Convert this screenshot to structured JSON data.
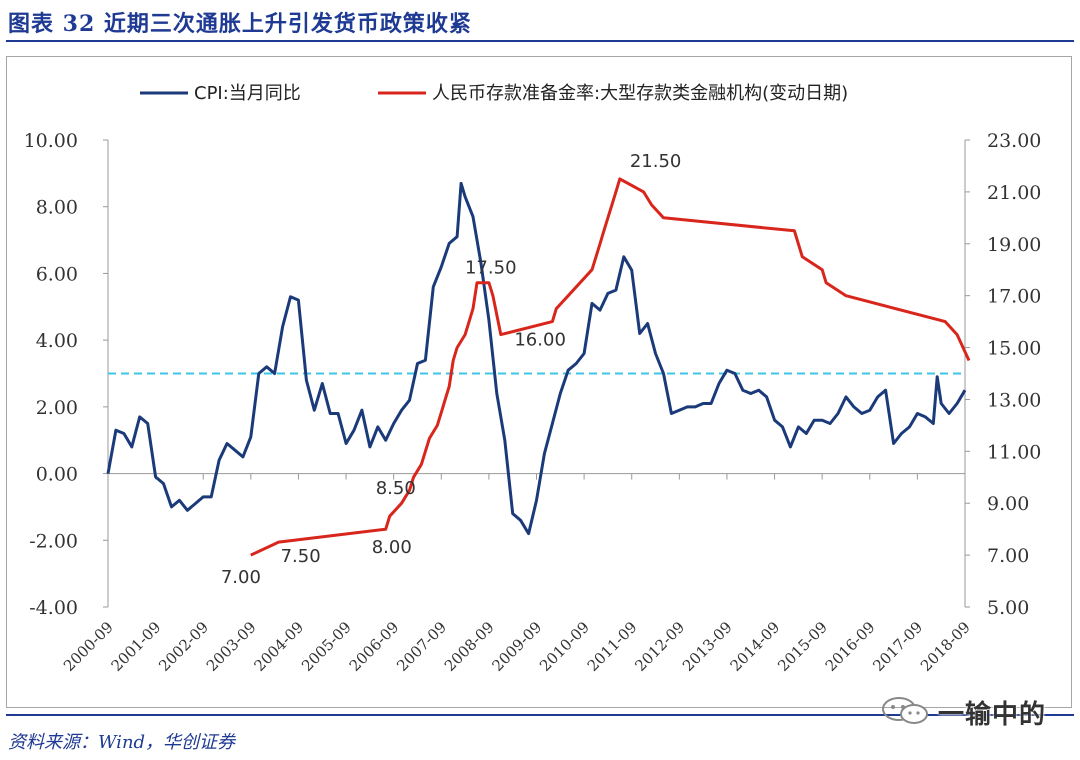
{
  "figure": {
    "title": "图表 32   近期三次通胀上升引发货币政策收紧",
    "source": "资料来源：Wind，华创证券",
    "watermark": "一输中的",
    "watermark_icon": "wechat-icon"
  },
  "colors": {
    "title": "#1f3a93",
    "cpi": "#1b3a7a",
    "rrr": "#d9261c",
    "reference": "#3ec6e6",
    "axis": "#999999"
  },
  "chart_data": {
    "type": "line",
    "x_range": [
      "2000-09",
      "2018-09"
    ],
    "xticks": [
      "2000-09",
      "2001-09",
      "2002-09",
      "2003-09",
      "2004-09",
      "2005-09",
      "2006-09",
      "2007-09",
      "2008-09",
      "2009-09",
      "2010-09",
      "2011-09",
      "2012-09",
      "2013-09",
      "2014-09",
      "2015-09",
      "2016-09",
      "2017-09",
      "2018-09"
    ],
    "y_left": {
      "min": -4,
      "max": 10,
      "ticks": [
        "-4.00",
        "-2.00",
        "0.00",
        "2.00",
        "4.00",
        "6.00",
        "8.00",
        "10.00"
      ]
    },
    "y_right": {
      "min": 5,
      "max": 23,
      "ticks": [
        "5.00",
        "7.00",
        "9.00",
        "11.00",
        "13.00",
        "15.00",
        "17.00",
        "19.00",
        "21.00",
        "23.00"
      ]
    },
    "legend_position": "top",
    "series": [
      {
        "name": "CPI:当月同比",
        "axis": "left",
        "x": [
          "2000-09",
          "2000-11",
          "2001-01",
          "2001-03",
          "2001-05",
          "2001-07",
          "2001-09",
          "2001-11",
          "2002-01",
          "2002-03",
          "2002-05",
          "2002-07",
          "2002-09",
          "2002-11",
          "2003-01",
          "2003-03",
          "2003-05",
          "2003-07",
          "2003-09",
          "2003-11",
          "2004-01",
          "2004-03",
          "2004-05",
          "2004-07",
          "2004-09",
          "2004-11",
          "2005-01",
          "2005-03",
          "2005-05",
          "2005-07",
          "2005-09",
          "2005-11",
          "2006-01",
          "2006-03",
          "2006-05",
          "2006-07",
          "2006-09",
          "2006-11",
          "2007-01",
          "2007-03",
          "2007-05",
          "2007-07",
          "2007-09",
          "2007-11",
          "2008-01",
          "2008-02",
          "2008-03",
          "2008-05",
          "2008-07",
          "2008-09",
          "2008-11",
          "2009-01",
          "2009-03",
          "2009-05",
          "2009-07",
          "2009-09",
          "2009-11",
          "2010-01",
          "2010-03",
          "2010-05",
          "2010-07",
          "2010-09",
          "2010-11",
          "2011-01",
          "2011-03",
          "2011-05",
          "2011-07",
          "2011-09",
          "2011-11",
          "2012-01",
          "2012-03",
          "2012-05",
          "2012-07",
          "2012-09",
          "2012-11",
          "2013-01",
          "2013-03",
          "2013-05",
          "2013-07",
          "2013-09",
          "2013-11",
          "2014-01",
          "2014-03",
          "2014-05",
          "2014-07",
          "2014-09",
          "2014-11",
          "2015-01",
          "2015-03",
          "2015-05",
          "2015-07",
          "2015-09",
          "2015-11",
          "2016-01",
          "2016-03",
          "2016-05",
          "2016-07",
          "2016-09",
          "2016-11",
          "2017-01",
          "2017-03",
          "2017-05",
          "2017-07",
          "2017-09",
          "2017-11",
          "2018-01",
          "2018-02",
          "2018-03",
          "2018-05",
          "2018-07",
          "2018-09"
        ],
        "values": [
          0.0,
          1.3,
          1.2,
          0.8,
          1.7,
          1.5,
          -0.1,
          -0.3,
          -1.0,
          -0.8,
          -1.1,
          -0.9,
          -0.7,
          -0.7,
          0.4,
          0.9,
          0.7,
          0.5,
          1.1,
          3.0,
          3.2,
          3.0,
          4.4,
          5.3,
          5.2,
          2.8,
          1.9,
          2.7,
          1.8,
          1.8,
          0.9,
          1.3,
          1.9,
          0.8,
          1.4,
          1.0,
          1.5,
          1.9,
          2.2,
          3.3,
          3.4,
          5.6,
          6.2,
          6.9,
          7.1,
          8.7,
          8.3,
          7.7,
          6.3,
          4.6,
          2.4,
          1.0,
          -1.2,
          -1.4,
          -1.8,
          -0.8,
          0.6,
          1.5,
          2.4,
          3.1,
          3.3,
          3.6,
          5.1,
          4.9,
          5.4,
          5.5,
          6.5,
          6.1,
          4.2,
          4.5,
          3.6,
          3.0,
          1.8,
          1.9,
          2.0,
          2.0,
          2.1,
          2.1,
          2.7,
          3.1,
          3.0,
          2.5,
          2.4,
          2.5,
          2.3,
          1.6,
          1.4,
          0.8,
          1.4,
          1.2,
          1.6,
          1.6,
          1.5,
          1.8,
          2.3,
          2.0,
          1.8,
          1.9,
          2.3,
          2.5,
          0.9,
          1.2,
          1.4,
          1.8,
          1.7,
          1.5,
          2.9,
          2.1,
          1.8,
          2.1,
          2.5
        ]
      },
      {
        "name": "人民币存款准备金率:大型存款类金融机构(变动日期)",
        "axis": "right",
        "x": [
          "2003-09",
          "2004-04",
          "2006-07",
          "2006-08",
          "2006-11",
          "2007-01",
          "2007-02",
          "2007-04",
          "2007-05",
          "2007-06",
          "2007-08",
          "2007-09",
          "2007-10",
          "2007-11",
          "2007-12",
          "2008-01",
          "2008-03",
          "2008-04",
          "2008-05",
          "2008-06",
          "2008-09",
          "2008-10",
          "2008-12",
          "2010-01",
          "2010-02",
          "2010-05",
          "2010-11",
          "2010-12",
          "2011-01",
          "2011-02",
          "2011-03",
          "2011-04",
          "2011-05",
          "2011-06",
          "2011-12",
          "2012-02",
          "2012-05",
          "2015-02",
          "2015-04",
          "2015-09",
          "2015-10",
          "2016-03",
          "2018-04",
          "2018-07",
          "2018-10"
        ],
        "values": [
          7.0,
          7.5,
          8.0,
          8.5,
          9.0,
          9.5,
          10.0,
          10.5,
          11.0,
          11.5,
          12.0,
          12.5,
          13.0,
          13.5,
          14.5,
          15.0,
          15.5,
          16.0,
          16.5,
          17.5,
          17.5,
          17.0,
          15.5,
          16.0,
          16.5,
          17.0,
          18.0,
          18.5,
          19.0,
          19.5,
          20.0,
          20.5,
          21.0,
          21.5,
          21.0,
          20.5,
          20.0,
          19.5,
          18.5,
          18.0,
          17.5,
          17.0,
          16.0,
          15.5,
          14.5
        ]
      }
    ],
    "reference_line": {
      "axis": "left",
      "value": 3.0
    },
    "annotations": [
      {
        "text": "7.00",
        "x": "2003-09",
        "value": 7.0
      },
      {
        "text": "7.50",
        "x": "2004-04",
        "value": 7.5
      },
      {
        "text": "8.50",
        "x": "2006-08",
        "value": 8.5
      },
      {
        "text": "8.00",
        "x": "2006-07",
        "value": 8.0
      },
      {
        "text": "17.50",
        "x": "2008-06",
        "value": 17.5
      },
      {
        "text": "16.00",
        "x": "2010-01",
        "value": 16.0
      },
      {
        "text": "21.50",
        "x": "2011-06",
        "value": 21.5
      }
    ]
  }
}
